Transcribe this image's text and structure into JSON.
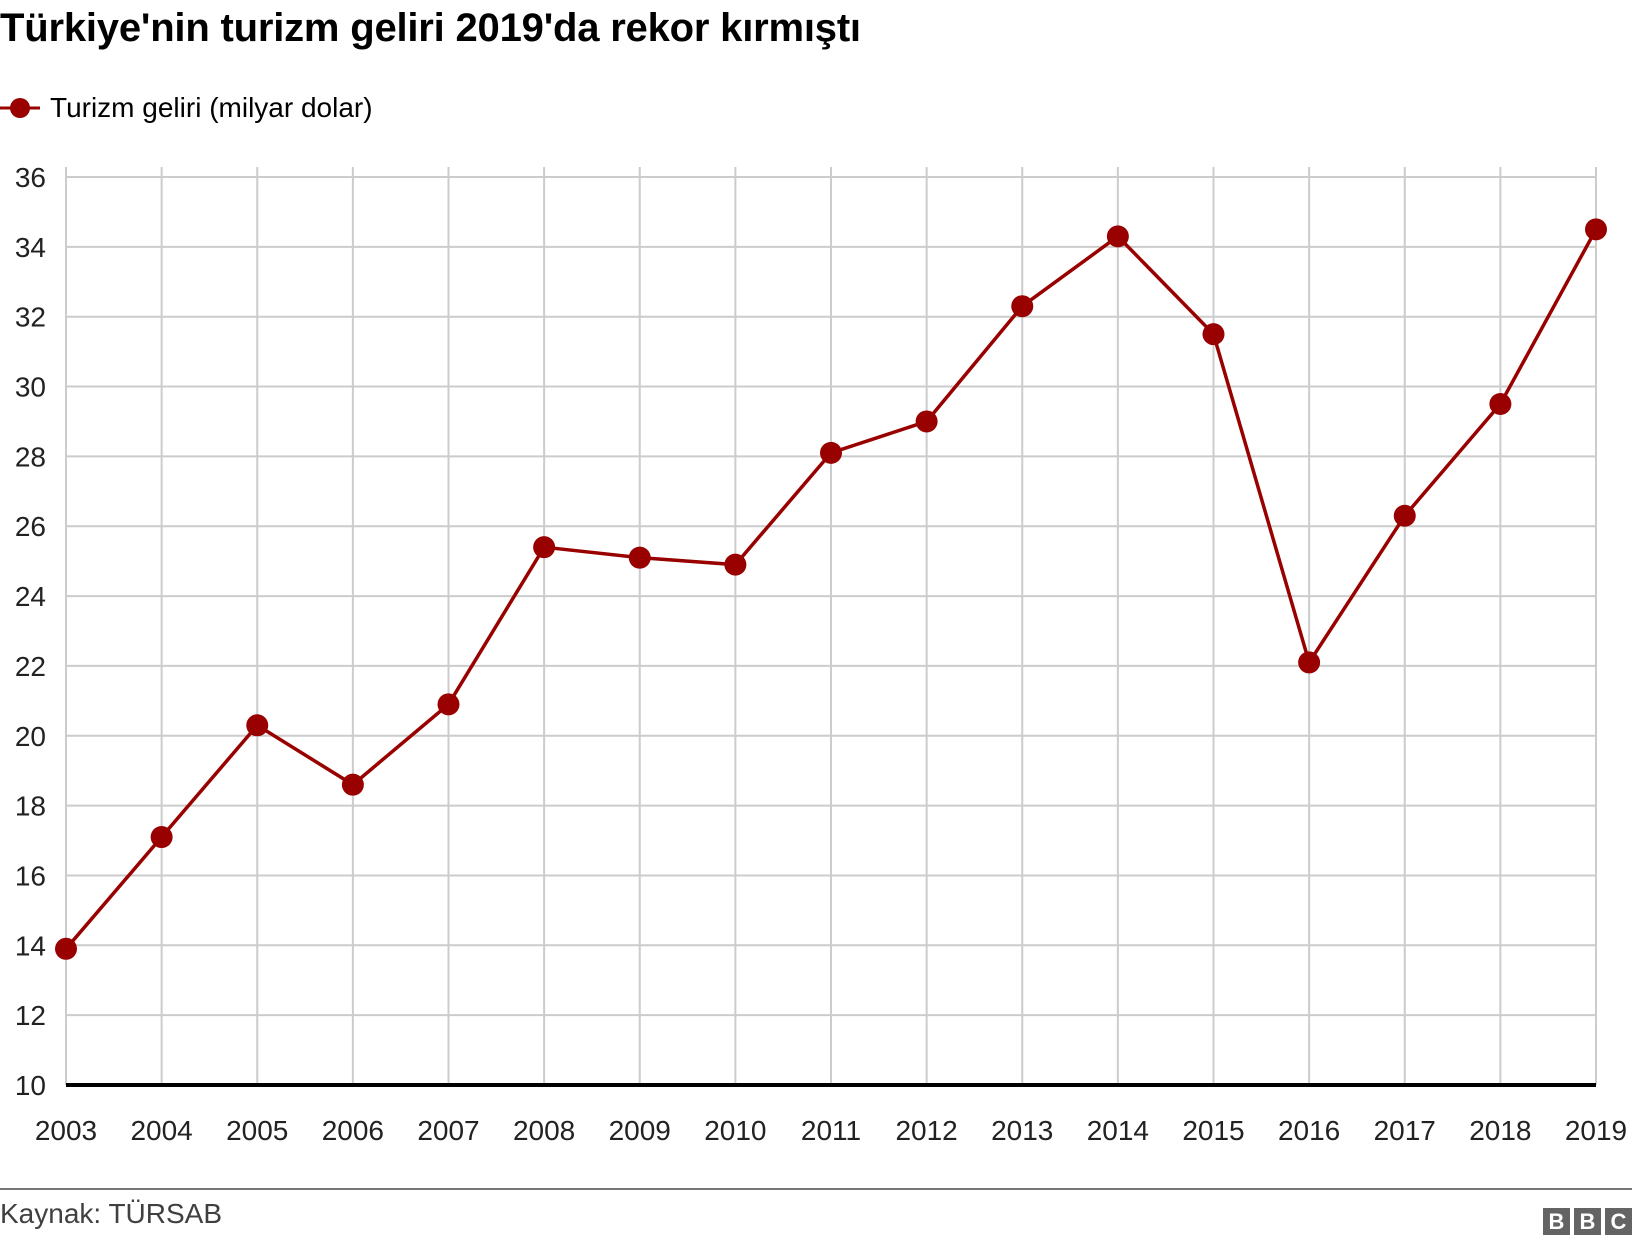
{
  "title": "Türkiye'nin turizm geliri 2019'da rekor kırmıştı",
  "legend": {
    "label": "Turizm geliri (milyar dolar)",
    "color": "#990000"
  },
  "footer": {
    "source": "Kaynak: TÜRSAB",
    "logo": [
      "B",
      "B",
      "C"
    ]
  },
  "colors": {
    "series": "#990000",
    "grid": "#cccccc",
    "baseline": "#000000"
  },
  "chart_data": {
    "type": "line",
    "title": "Türkiye'nin turizm geliri 2019'da rekor kırmıştı",
    "xlabel": "",
    "ylabel": "",
    "ylim": [
      10,
      36
    ],
    "yticks": [
      10,
      12,
      14,
      16,
      18,
      20,
      22,
      24,
      26,
      28,
      30,
      32,
      34,
      36
    ],
    "grid": true,
    "legend_position": "top-left",
    "categories": [
      "2003",
      "2004",
      "2005",
      "2006",
      "2007",
      "2008",
      "2009",
      "2010",
      "2011",
      "2012",
      "2013",
      "2014",
      "2015",
      "2016",
      "2017",
      "2018",
      "2019"
    ],
    "series": [
      {
        "name": "Turizm geliri (milyar dolar)",
        "values": [
          13.9,
          17.1,
          20.3,
          18.6,
          20.9,
          25.4,
          25.1,
          24.9,
          28.1,
          29.0,
          32.3,
          34.3,
          31.5,
          22.1,
          26.3,
          29.5,
          34.5
        ]
      }
    ]
  }
}
